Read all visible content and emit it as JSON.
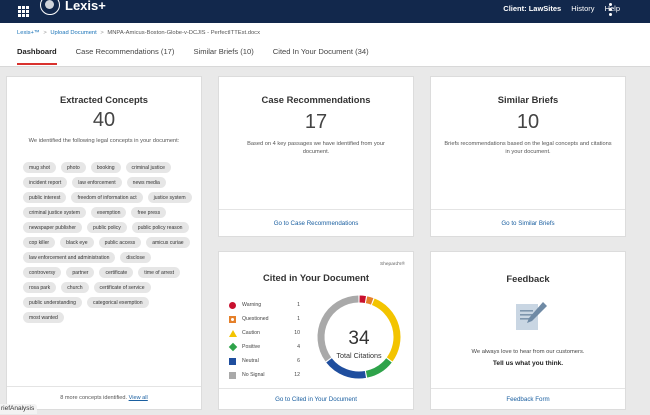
{
  "topbar": {
    "logo_text": "Lexis+",
    "logo_sup": "™",
    "client_label": "Client: LawSites",
    "history_label": "History",
    "help_label": "Help"
  },
  "breadcrumb": {
    "root": "Lexis+™",
    "upload": "Upload Document",
    "document": "MNPA-Amicus-Boston-Globe-v-DCJIS - PerfectITTEst.docx",
    "separator": ">"
  },
  "tabs": [
    {
      "label": "Dashboard"
    },
    {
      "label": "Case Recommendations (17)"
    },
    {
      "label": "Similar Briefs (10)"
    },
    {
      "label": "Cited In Your Document (34)"
    }
  ],
  "concepts": {
    "title": "Extracted Concepts",
    "count": "40",
    "desc": "We identified the following legal concepts in your document:",
    "chips": [
      "mug shot",
      "photo",
      "booking",
      "criminal justice",
      "incident report",
      "law enforcement",
      "news media",
      "public interest",
      "freedom of information act",
      "justice system",
      "criminal justice system",
      "exemption",
      "free press",
      "newspaper publisher",
      "public policy",
      "public policy reason",
      "cop killer",
      "black eye",
      "public access",
      "amicus curiae",
      "law enforcement and administration",
      "disclose",
      "controversy",
      "partner",
      "certificate",
      "time of arrest",
      "rosa park",
      "church",
      "certificate of service",
      "public understanding",
      "categorical exemption",
      "most wanted"
    ],
    "more_text": "8 more concepts identified.",
    "more_link": "View all"
  },
  "case_recs": {
    "title": "Case Recommendations",
    "count": "17",
    "desc": "Based on 4 key passages we have identified from your document.",
    "link": "Go to Case Recommendations"
  },
  "similar_briefs": {
    "title": "Similar Briefs",
    "count": "10",
    "desc": "Briefs recommendations based on the legal concepts and citations in your document.",
    "link": "Go to Similar Briefs"
  },
  "cited": {
    "title": "Cited in Your Document",
    "shepards": "Shepard's®",
    "total": "34",
    "total_label": "Total Citations",
    "link": "Go to Cited in Your Document",
    "legend": [
      {
        "label": "Warning",
        "count": "1",
        "color": "#c8102e",
        "icon": "warning-circle"
      },
      {
        "label": "Questioned",
        "count": "1",
        "color": "#e5802a",
        "icon": "questioned-square"
      },
      {
        "label": "Caution",
        "count": "10",
        "color": "#f3c400",
        "icon": "caution-triangle"
      },
      {
        "label": "Positive",
        "count": "4",
        "color": "#2ea34a",
        "icon": "positive-diamond"
      },
      {
        "label": "Neutral",
        "count": "6",
        "color": "#1f4e9e",
        "icon": "neutral-square"
      },
      {
        "label": "No Signal",
        "count": "12",
        "color": "#a9a9a9",
        "icon": "no-signal-square"
      }
    ]
  },
  "feedback": {
    "title": "Feedback",
    "line1": "We always love to hear from our customers.",
    "line2": "Tell us what you think.",
    "link": "Feedback Form"
  },
  "bottom_tag": "riefAnalysis"
}
